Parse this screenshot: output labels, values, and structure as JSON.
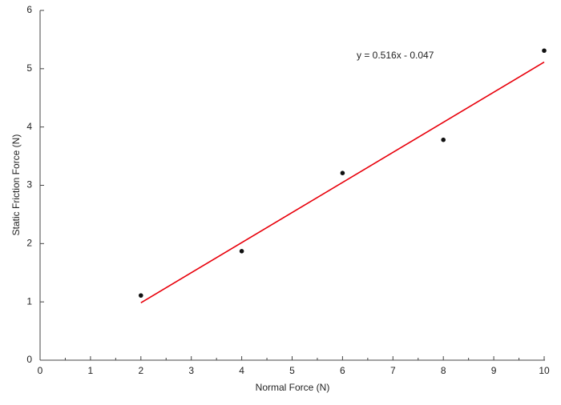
{
  "chart_data": {
    "type": "scatter",
    "x_label": "Normal Force (N)",
    "y_label": "Static Friction Force (N)",
    "annotation": "y = 0.516x - 0.047",
    "x": [
      2,
      4,
      6,
      8,
      10
    ],
    "values": [
      1.11,
      1.87,
      3.21,
      3.78,
      5.31
    ],
    "color": "#111111",
    "trendline": {
      "x": [
        2,
        10
      ],
      "values": [
        0.985,
        5.113
      ],
      "color": "#e8000b"
    },
    "xlim": [
      0,
      10
    ],
    "xticks": [
      0,
      1,
      2,
      3,
      4,
      5,
      6,
      7,
      8,
      9,
      10
    ],
    "xminorticks": [
      0.5,
      1.5,
      2.5,
      3.5,
      4.5,
      5.5,
      6.5,
      7.5,
      8.5,
      9.5
    ],
    "ylim": [
      0,
      6
    ],
    "yticks": [
      0,
      1,
      2,
      3,
      4,
      5,
      6
    ]
  }
}
